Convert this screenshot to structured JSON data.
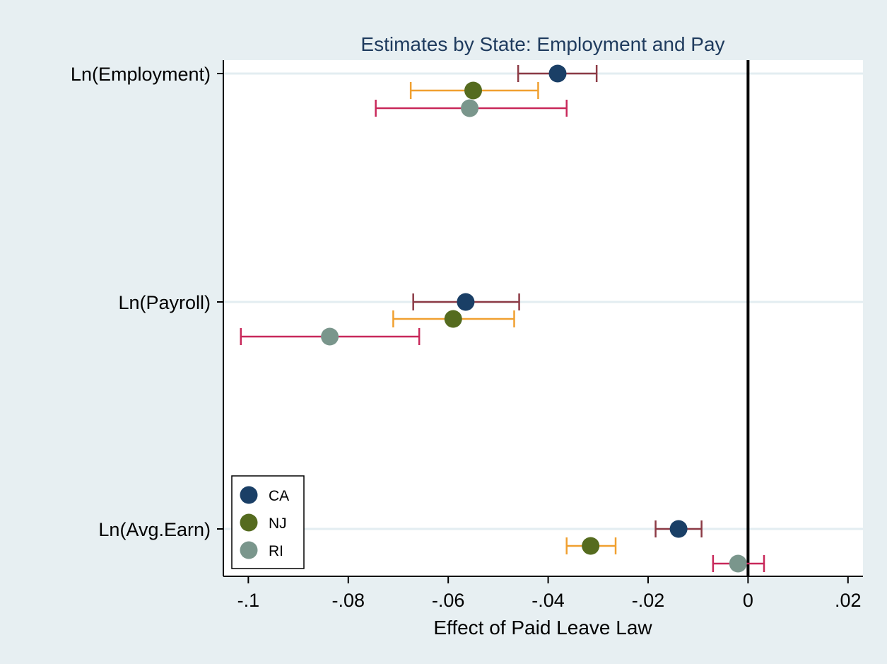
{
  "chart_data": {
    "type": "scatter",
    "subtype": "coefficient-plot-with-confidence-intervals",
    "title": "Estimates by State: Employment and Pay",
    "xlabel": "Effect of Paid Leave Law",
    "ylabel": "",
    "xlim": [
      -0.105,
      0.023
    ],
    "x_ticks": [
      -0.1,
      -0.08,
      -0.06,
      -0.04,
      -0.02,
      0,
      0.02
    ],
    "x_tick_labels": [
      "-.1",
      "-.08",
      "-.06",
      "-.04",
      "-.02",
      "0",
      ".02"
    ],
    "categories": [
      "Ln(Employment)",
      "Ln(Payroll)",
      "Ln(Avg.Earn)"
    ],
    "reference_line_x": 0,
    "grid": "horizontal",
    "legend_position": "bottom-left",
    "series": [
      {
        "name": "CA",
        "marker_color": "#1a3f66",
        "ci_color": "#8c3a45",
        "points": [
          {
            "category": "Ln(Employment)",
            "estimate": -0.0381,
            "ci_low": -0.046,
            "ci_high": -0.0303
          },
          {
            "category": "Ln(Payroll)",
            "estimate": -0.0565,
            "ci_low": -0.067,
            "ci_high": -0.0458
          },
          {
            "category": "Ln(Avg.Earn)",
            "estimate": -0.0139,
            "ci_low": -0.0185,
            "ci_high": -0.0093
          }
        ]
      },
      {
        "name": "NJ",
        "marker_color": "#556b1f",
        "ci_color": "#f0a030",
        "points": [
          {
            "category": "Ln(Employment)",
            "estimate": -0.055,
            "ci_low": -0.0675,
            "ci_high": -0.042
          },
          {
            "category": "Ln(Payroll)",
            "estimate": -0.059,
            "ci_low": -0.071,
            "ci_high": -0.0468
          },
          {
            "category": "Ln(Avg.Earn)",
            "estimate": -0.0315,
            "ci_low": -0.0363,
            "ci_high": -0.0265
          }
        ]
      },
      {
        "name": "RI",
        "marker_color": "#7a968c",
        "ci_color": "#c8285a",
        "points": [
          {
            "category": "Ln(Employment)",
            "estimate": -0.0557,
            "ci_low": -0.0745,
            "ci_high": -0.0363
          },
          {
            "category": "Ln(Payroll)",
            "estimate": -0.0837,
            "ci_low": -0.1015,
            "ci_high": -0.0658
          },
          {
            "category": "Ln(Avg.Earn)",
            "estimate": -0.002,
            "ci_low": -0.007,
            "ci_high": 0.0032
          }
        ]
      }
    ]
  },
  "colors": {
    "outer_background": "#e7eff2",
    "plot_background": "#ffffff",
    "gridline": "#e3edf1",
    "title": "#1f3b5e"
  }
}
